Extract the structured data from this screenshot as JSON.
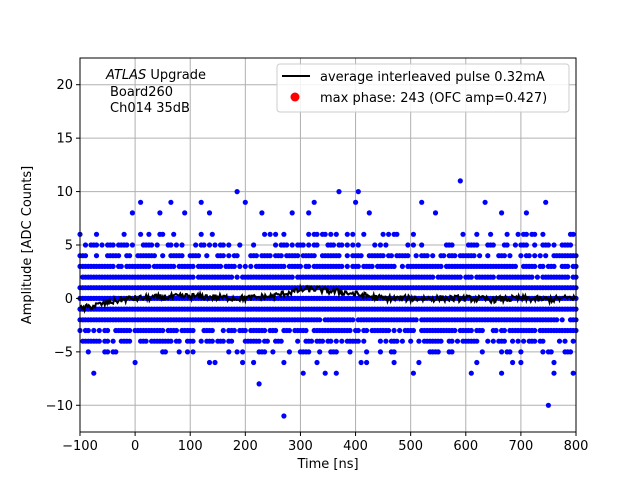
{
  "chart_data": {
    "type": "scatter",
    "xlabel": "Time [ns]",
    "ylabel": "Amplitude [ADC Counts]",
    "xlim": [
      -100,
      800
    ],
    "ylim": [
      -12.5,
      22.5
    ],
    "x_ticks": [
      -100,
      0,
      100,
      200,
      300,
      400,
      500,
      600,
      700,
      800
    ],
    "y_ticks": [
      -10,
      -5,
      0,
      5,
      10,
      15,
      20
    ],
    "x_tick_labels": [
      "−100",
      "0",
      "100",
      "200",
      "300",
      "400",
      "500",
      "600",
      "700",
      "800"
    ],
    "y_tick_labels": [
      "−10",
      "−5",
      "0",
      "5",
      "10",
      "15",
      "20"
    ],
    "grid": true,
    "legend_position": "top-right",
    "annotation": {
      "experiment": "ATLAS",
      "experiment_suffix": " Upgrade",
      "board": "Board260",
      "channel": "Ch014 35dB"
    },
    "series": [
      {
        "name": "average interleaved pulse 0.32mA",
        "kind": "line",
        "color": "#000000",
        "x": [
          -100,
          -75,
          -50,
          -25,
          0,
          50,
          100,
          150,
          200,
          250,
          275,
          300,
          325,
          350,
          375,
          400,
          425,
          450,
          500,
          550,
          600,
          650,
          700,
          750,
          800
        ],
        "y": [
          -1.0,
          -0.7,
          -0.4,
          -0.1,
          0.0,
          0.1,
          0.2,
          0.1,
          0.0,
          0.2,
          0.5,
          0.8,
          0.9,
          0.7,
          0.6,
          0.4,
          0.2,
          0.0,
          0.0,
          0.0,
          0.0,
          -0.1,
          0.0,
          -0.1,
          0.1
        ]
      },
      {
        "name": "max phase: 243 (OFC amp=0.427)",
        "kind": "scatter",
        "color": "#ff0000",
        "x": [],
        "y": []
      }
    ],
    "samples": {
      "color": "#0000ff",
      "band_levels": [
        -6,
        -5,
        -4,
        -3,
        -2,
        -1,
        0,
        1,
        2,
        3,
        4,
        5,
        6
      ],
      "outliers": [
        {
          "x": 270,
          "y": -11
        },
        {
          "x": 750,
          "y": -10
        },
        {
          "x": 225,
          "y": -8
        },
        {
          "x": -75,
          "y": -7
        },
        {
          "x": 305,
          "y": -7
        },
        {
          "x": 345,
          "y": -7
        },
        {
          "x": 365,
          "y": -7
        },
        {
          "x": 505,
          "y": -7
        },
        {
          "x": 610,
          "y": -7
        },
        {
          "x": 665,
          "y": -7
        },
        {
          "x": 760,
          "y": -7
        },
        {
          "x": 795,
          "y": -7
        },
        {
          "x": 10,
          "y": 9
        },
        {
          "x": 65,
          "y": 9
        },
        {
          "x": 120,
          "y": 9
        },
        {
          "x": 200,
          "y": 9
        },
        {
          "x": 325,
          "y": 9
        },
        {
          "x": 400,
          "y": 9
        },
        {
          "x": 520,
          "y": 9
        },
        {
          "x": 635,
          "y": 9
        },
        {
          "x": 745,
          "y": 9
        },
        {
          "x": 185,
          "y": 10
        },
        {
          "x": 370,
          "y": 10
        },
        {
          "x": 405,
          "y": 10
        },
        {
          "x": 590,
          "y": 11
        },
        {
          "x": -5,
          "y": 8
        },
        {
          "x": 45,
          "y": 8
        },
        {
          "x": 90,
          "y": 8
        },
        {
          "x": 135,
          "y": 8
        },
        {
          "x": 230,
          "y": 8
        },
        {
          "x": 285,
          "y": 8
        },
        {
          "x": 315,
          "y": 8
        },
        {
          "x": 425,
          "y": 8
        },
        {
          "x": 545,
          "y": 8
        },
        {
          "x": 665,
          "y": 8
        },
        {
          "x": 710,
          "y": 8
        }
      ]
    }
  }
}
